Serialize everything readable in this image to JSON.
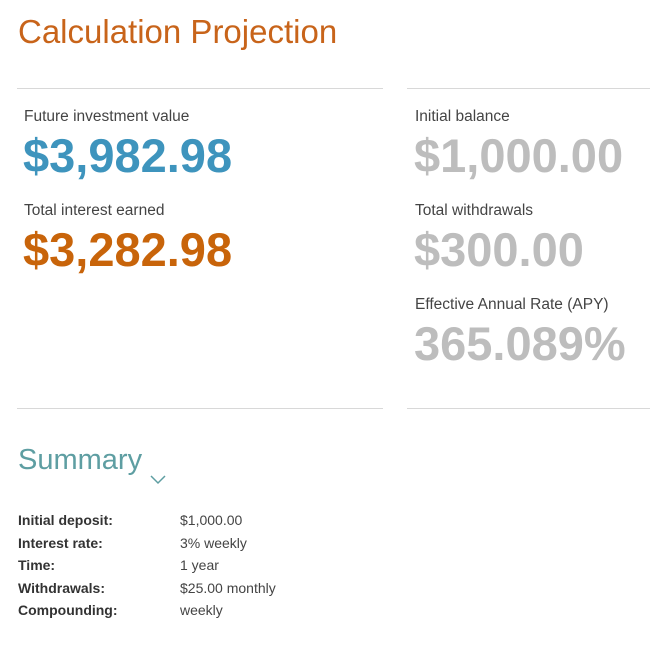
{
  "title": "Calculation Projection",
  "left_stats": [
    {
      "label": "Future investment value",
      "value": "$3,982.98"
    },
    {
      "label": "Total interest earned",
      "value": "$3,282.98"
    }
  ],
  "right_stats": [
    {
      "label": "Initial balance",
      "value": "$1,000.00"
    },
    {
      "label": "Total withdrawals",
      "value": "$300.00"
    },
    {
      "label": "Effective Annual Rate (APY)",
      "value": "365.089%"
    }
  ],
  "summary": {
    "heading": "Summary",
    "rows": [
      {
        "key": "Initial deposit:",
        "value": "$1,000.00"
      },
      {
        "key": "Interest rate:",
        "value": "3% weekly"
      },
      {
        "key": "Time:",
        "value": "1 year"
      },
      {
        "key": "Withdrawals:",
        "value": "$25.00 monthly"
      },
      {
        "key": "Compounding:",
        "value": "weekly"
      }
    ]
  },
  "colors": {
    "title": "#c8641a",
    "future_value": "#3e94bd",
    "interest": "#c8640a",
    "secondary_values": "#bdbdbd",
    "summary_heading": "#5e9ea2"
  },
  "icons": {
    "summary_toggle": "chevron-down-icon"
  }
}
